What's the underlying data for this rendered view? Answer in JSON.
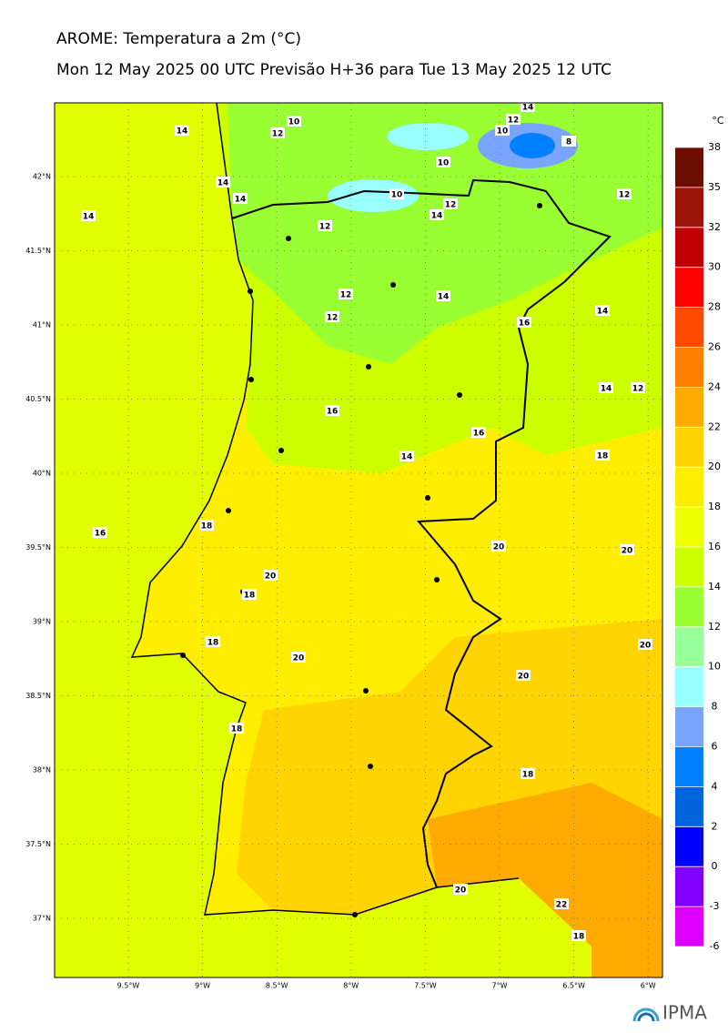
{
  "header": {
    "title": "AROME: Temperatura a 2m (°C)",
    "subtitle": "Mon 12 May 2025 00 UTC Previsão H+36 para Tue 13 May 2025 12 UTC"
  },
  "map": {
    "lat_labels": [
      "42°N",
      "41.5°N",
      "41°N",
      "40.5°N",
      "40°N",
      "39.5°N",
      "39°N",
      "38.5°N",
      "38°N",
      "37.5°N",
      "37°N"
    ],
    "lon_labels": [
      "9.5°W",
      "9°W",
      "8.5°W",
      "8°W",
      "7.5°W",
      "7°W",
      "6.5°W",
      "6°W"
    ],
    "contour_labels": [
      "14",
      "10",
      "12",
      "14",
      "12",
      "10",
      "8",
      "10",
      "14",
      "14",
      "10",
      "12",
      "14",
      "12",
      "14",
      "12",
      "12",
      "14",
      "12",
      "16",
      "14",
      "14",
      "12",
      "16",
      "16",
      "18",
      "14",
      "16",
      "18",
      "20",
      "20",
      "20",
      "18",
      "18",
      "20",
      "20",
      "20",
      "18",
      "18",
      "20",
      "22",
      "18"
    ]
  },
  "colorbar": {
    "unit": "°C",
    "ticks": [
      38,
      35,
      32,
      30,
      28,
      26,
      24,
      22,
      20,
      18,
      16,
      14,
      12,
      10,
      8,
      6,
      4,
      2,
      0,
      -3,
      -6
    ],
    "colors": [
      "#6b0e00",
      "#9a1408",
      "#c00000",
      "#ff0000",
      "#ff4a00",
      "#ff8000",
      "#ffaa00",
      "#ffd400",
      "#ffee00",
      "#f0ff00",
      "#ccff00",
      "#99ff33",
      "#99ff99",
      "#99ffff",
      "#7aa5ff",
      "#0080ff",
      "#0064dc",
      "#0000ff",
      "#7f00ff",
      "#dd00ff"
    ]
  },
  "logo": "IPMA"
}
